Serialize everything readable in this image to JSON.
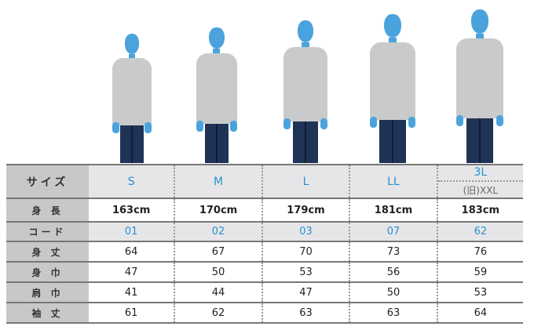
{
  "figures": [
    "S",
    "M",
    "L",
    "LL",
    "3L"
  ],
  "table": {
    "header": {
      "label": "サイズ",
      "sizes": [
        "S",
        "M",
        "L",
        "LL"
      ],
      "last_size": "3L",
      "last_size_old": "(旧)XXL"
    },
    "rows": [
      {
        "label": "身 長",
        "values": [
          "163cm",
          "170cm",
          "179cm",
          "181cm",
          "183cm"
        ]
      },
      {
        "label": "コード",
        "values": [
          "01",
          "02",
          "03",
          "07",
          "62"
        ]
      },
      {
        "label": "身 丈",
        "values": [
          "64",
          "67",
          "70",
          "73",
          "76"
        ]
      },
      {
        "label": "身 巾",
        "values": [
          "47",
          "50",
          "53",
          "56",
          "59"
        ]
      },
      {
        "label": "肩 巾",
        "values": [
          "41",
          "44",
          "47",
          "50",
          "53"
        ]
      },
      {
        "label": "袖 丈",
        "values": [
          "61",
          "62",
          "63",
          "63",
          "64"
        ]
      }
    ]
  },
  "colors": {
    "accent": "#2a8fd0",
    "label_bg": "#c8c8c8",
    "header_bg": "#e6e6e8"
  }
}
